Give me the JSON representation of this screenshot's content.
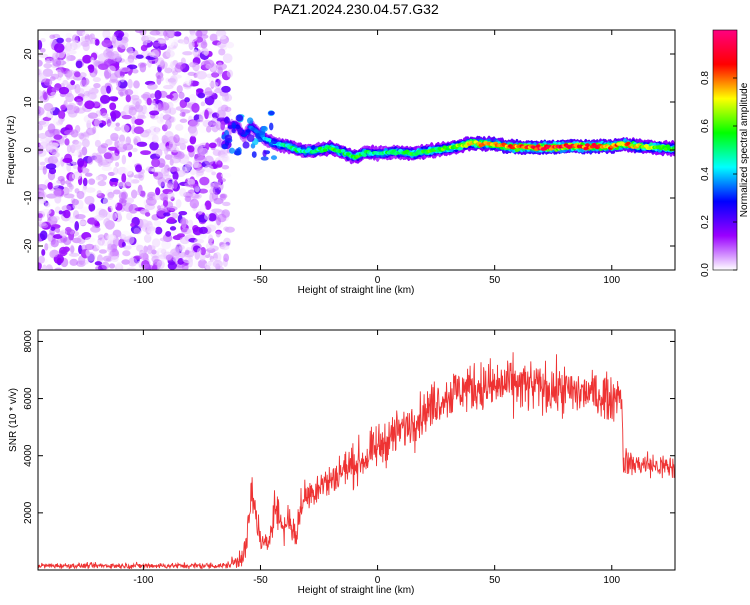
{
  "title": "PAZ1.2024.230.04.57.G32",
  "chart_data": [
    {
      "type": "heatmap",
      "xlabel": "Height of straight line (km)",
      "ylabel": "Frequency (Hz)",
      "xlim": [
        -145,
        127
      ],
      "ylim": [
        -25,
        25
      ],
      "xticks": [
        -100,
        -50,
        0,
        50,
        100
      ],
      "yticks": [
        -20,
        -10,
        0,
        10,
        20
      ],
      "colorbar": {
        "label": "Normalized spectral amplitude",
        "range": [
          0,
          1
        ],
        "ticks": [
          0.0,
          0.2,
          0.4,
          0.6,
          0.8
        ],
        "stops": [
          "#ffffff",
          "#9a00ff",
          "#0000ff",
          "#00ffff",
          "#00ff00",
          "#ffff00",
          "#ff0000",
          "#ff0080"
        ]
      },
      "noise_region": {
        "x_from": -145,
        "x_to": -63,
        "amplitude": 0.15
      },
      "ridge": {
        "x": [
          -63,
          -60,
          -57,
          -54,
          -50,
          -45,
          -40,
          -35,
          -30,
          -25,
          -20,
          -15,
          -10,
          -5,
          0,
          5,
          10,
          15,
          20,
          25,
          30,
          35,
          40,
          45,
          50,
          55,
          60,
          65,
          70,
          75,
          80,
          85,
          90,
          95,
          100,
          105,
          110,
          115,
          120,
          127
        ],
        "y": [
          5,
          5,
          3,
          5,
          3,
          1.5,
          1,
          0.2,
          -0.3,
          0,
          0.5,
          -0.5,
          -1.5,
          -0.5,
          -0.8,
          -0.5,
          -0.4,
          -0.8,
          -0.3,
          0,
          0.3,
          0.8,
          1.5,
          1.3,
          1.2,
          0.8,
          0.6,
          0.6,
          0.5,
          0.6,
          0.7,
          0.8,
          0.6,
          0.7,
          0.8,
          1.2,
          0.8,
          0.7,
          0.5,
          0.3
        ],
        "amplitude": [
          0.25,
          0.3,
          0.3,
          0.35,
          0.4,
          0.45,
          0.5,
          0.55,
          0.5,
          0.55,
          0.6,
          0.55,
          0.6,
          0.55,
          0.5,
          0.55,
          0.55,
          0.6,
          0.6,
          0.6,
          0.65,
          0.7,
          0.75,
          0.8,
          0.8,
          0.85,
          0.9,
          0.9,
          0.95,
          0.95,
          0.95,
          0.95,
          0.9,
          0.9,
          0.85,
          0.85,
          0.75,
          0.7,
          0.65,
          0.6
        ]
      }
    },
    {
      "type": "line",
      "xlabel": "Height of straight line (km)",
      "ylabel": "SNR (10 * v/v)",
      "xlim": [
        -145,
        127
      ],
      "ylim": [
        0,
        8400
      ],
      "xticks": [
        -100,
        -50,
        0,
        50,
        100
      ],
      "yticks": [
        2000,
        4000,
        6000,
        8000
      ],
      "color": "#ee3333",
      "envelope": {
        "x": [
          -145,
          -65,
          -60,
          -56,
          -54,
          -52,
          -50,
          -47,
          -44,
          -40,
          -38,
          -35,
          -32,
          -28,
          -25,
          -20,
          -15,
          -10,
          -5,
          0,
          5,
          10,
          15,
          20,
          25,
          30,
          35,
          40,
          45,
          50,
          55,
          60,
          65,
          70,
          75,
          80,
          85,
          90,
          95,
          100,
          104,
          105,
          110,
          115,
          120,
          127
        ],
        "mean": [
          150,
          150,
          300,
          800,
          2600,
          2000,
          1000,
          800,
          2300,
          1400,
          1900,
          1100,
          2500,
          2700,
          3000,
          3100,
          3500,
          3700,
          3900,
          4300,
          4600,
          4900,
          5200,
          5500,
          5900,
          6100,
          6300,
          6400,
          6400,
          6400,
          6500,
          6500,
          6400,
          6400,
          6300,
          6300,
          6200,
          6200,
          6100,
          6000,
          6300,
          3800,
          3700,
          3700,
          3600,
          3600
        ],
        "spread": [
          120,
          140,
          400,
          700,
          1000,
          900,
          600,
          500,
          900,
          700,
          800,
          600,
          900,
          800,
          800,
          800,
          900,
          900,
          900,
          1000,
          1000,
          1000,
          1000,
          1000,
          1000,
          1100,
          1100,
          1100,
          1200,
          1200,
          1200,
          1200,
          1200,
          1100,
          1100,
          1100,
          1100,
          1000,
          1000,
          1000,
          1000,
          600,
          600,
          600,
          600,
          600
        ]
      }
    }
  ]
}
